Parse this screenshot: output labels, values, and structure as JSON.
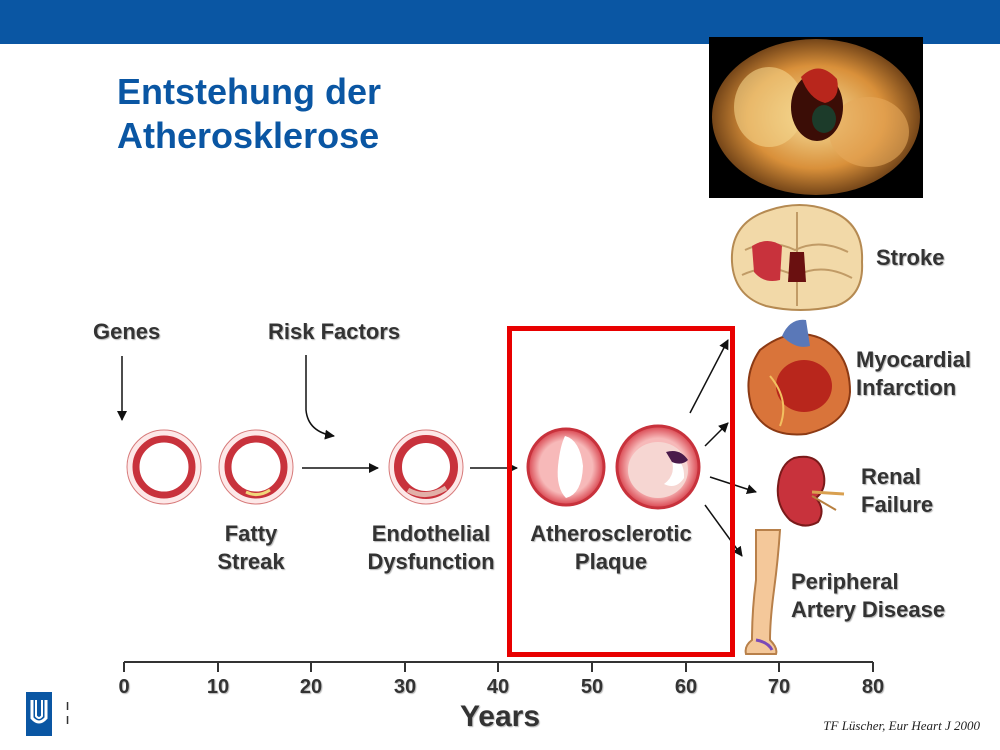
{
  "header": {
    "title_line1": "Entstehung der",
    "title_line2": "Atherosklerose"
  },
  "inputs": {
    "genes": "Genes",
    "risk_factors": "Risk Factors"
  },
  "stages": {
    "fatty_streak": [
      "Fatty",
      "Streak"
    ],
    "endothelial_dysfunction": [
      "Endothelial",
      "Dysfunction"
    ],
    "atherosclerotic_plaque": [
      "Atherosclerotic",
      "Plaque"
    ]
  },
  "outcomes": {
    "stroke": [
      "Stroke"
    ],
    "myocardial_infarction": [
      "Myocardial",
      "Infarction"
    ],
    "renal_failure": [
      "Renal",
      "Failure"
    ],
    "peripheral_artery_disease": [
      "Peripheral",
      "Artery Disease"
    ]
  },
  "axis": {
    "ticks": [
      "0",
      "10",
      "20",
      "30",
      "40",
      "50",
      "60",
      "70",
      "80"
    ],
    "label": "Years"
  },
  "citation": "TF Lüscher, Eur Heart J 2000",
  "logo_text": [
    "l",
    "l"
  ],
  "colors": {
    "brand": "#0a56a3",
    "highlight": "#e80000",
    "vessel": "#c8323c"
  }
}
